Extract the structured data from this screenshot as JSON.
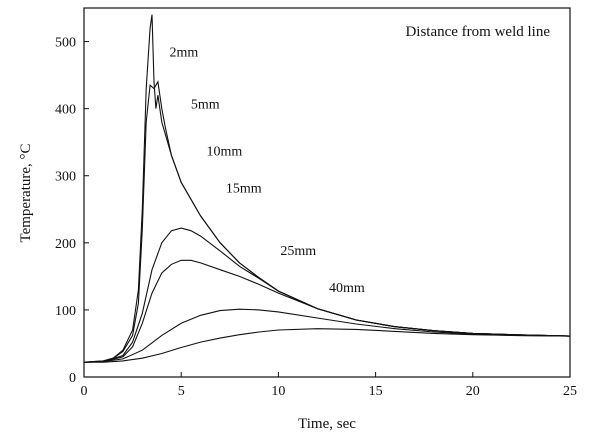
{
  "chart_data": {
    "type": "line",
    "title": "",
    "annotation": "Distance from weld line",
    "xlabel": "Time, sec",
    "ylabel": "Temperature, °C",
    "xlim": [
      0,
      25
    ],
    "ylim": [
      0,
      550
    ],
    "xticks": [
      0,
      5,
      10,
      15,
      20,
      25
    ],
    "yticks": [
      0,
      100,
      200,
      300,
      400,
      500
    ],
    "grid": false,
    "series": [
      {
        "name": "2mm",
        "x": [
          0,
          1,
          1.5,
          2,
          2.5,
          2.8,
          3.0,
          3.2,
          3.4,
          3.5,
          3.6,
          3.7,
          3.8,
          4.0,
          4.5,
          5,
          6,
          7,
          8,
          9,
          10,
          12,
          14,
          16,
          18,
          20,
          22,
          25
        ],
        "y": [
          22,
          24,
          28,
          40,
          70,
          130,
          250,
          430,
          520,
          540,
          440,
          400,
          420,
          380,
          330,
          290,
          240,
          200,
          170,
          148,
          128,
          102,
          85,
          75,
          69,
          65,
          63,
          61
        ]
      },
      {
        "name": "5mm",
        "x": [
          0,
          1,
          1.5,
          2,
          2.5,
          2.8,
          3.0,
          3.2,
          3.4,
          3.6,
          3.8,
          4.0,
          4.2,
          4.5,
          5,
          6,
          7,
          8,
          9,
          10,
          12,
          14,
          16,
          18,
          20,
          22,
          25
        ],
        "y": [
          22,
          24,
          28,
          38,
          62,
          110,
          220,
          380,
          435,
          430,
          440,
          400,
          370,
          330,
          290,
          240,
          200,
          170,
          148,
          128,
          102,
          85,
          75,
          69,
          65,
          63,
          61
        ]
      },
      {
        "name": "10mm",
        "x": [
          0,
          1,
          2,
          2.5,
          3,
          3.5,
          4,
          4.5,
          5,
          5.5,
          6,
          7,
          8,
          9,
          10,
          12,
          14,
          16,
          18,
          20,
          22,
          25
        ],
        "y": [
          22,
          23,
          32,
          52,
          95,
          160,
          200,
          218,
          222,
          218,
          210,
          188,
          165,
          147,
          128,
          102,
          85,
          75,
          69,
          65,
          63,
          61
        ]
      },
      {
        "name": "15mm",
        "x": [
          0,
          1,
          2,
          2.5,
          3,
          3.5,
          4,
          4.5,
          5,
          5.5,
          6,
          7,
          8,
          9,
          10,
          12,
          14,
          16,
          18,
          20,
          22,
          25
        ],
        "y": [
          22,
          23,
          30,
          45,
          80,
          125,
          155,
          168,
          174,
          174,
          170,
          160,
          150,
          138,
          125,
          102,
          85,
          75,
          69,
          65,
          63,
          61
        ]
      },
      {
        "name": "25mm",
        "x": [
          0,
          1,
          2,
          3,
          4,
          5,
          6,
          7,
          8,
          9,
          10,
          12,
          14,
          16,
          18,
          20,
          22,
          25
        ],
        "y": [
          22,
          23,
          27,
          40,
          62,
          80,
          92,
          99,
          101,
          100,
          97,
          88,
          79,
          72,
          67,
          64,
          62,
          61
        ]
      },
      {
        "name": "40mm",
        "x": [
          0,
          1,
          2,
          3,
          4,
          5,
          6,
          7,
          8,
          9,
          10,
          12,
          14,
          16,
          18,
          20,
          22,
          25
        ],
        "y": [
          22,
          22,
          24,
          28,
          35,
          44,
          52,
          58,
          63,
          67,
          70,
          72,
          71,
          68,
          65,
          63,
          62,
          61
        ]
      }
    ],
    "label_positions": [
      {
        "text": "2mm",
        "x": 4.4,
        "y": 478
      },
      {
        "text": "5mm",
        "x": 5.5,
        "y": 400
      },
      {
        "text": "10mm",
        "x": 6.3,
        "y": 330
      },
      {
        "text": "15mm",
        "x": 7.3,
        "y": 275
      },
      {
        "text": "25mm",
        "x": 10.1,
        "y": 182
      },
      {
        "text": "40mm",
        "x": 12.6,
        "y": 127
      }
    ]
  }
}
